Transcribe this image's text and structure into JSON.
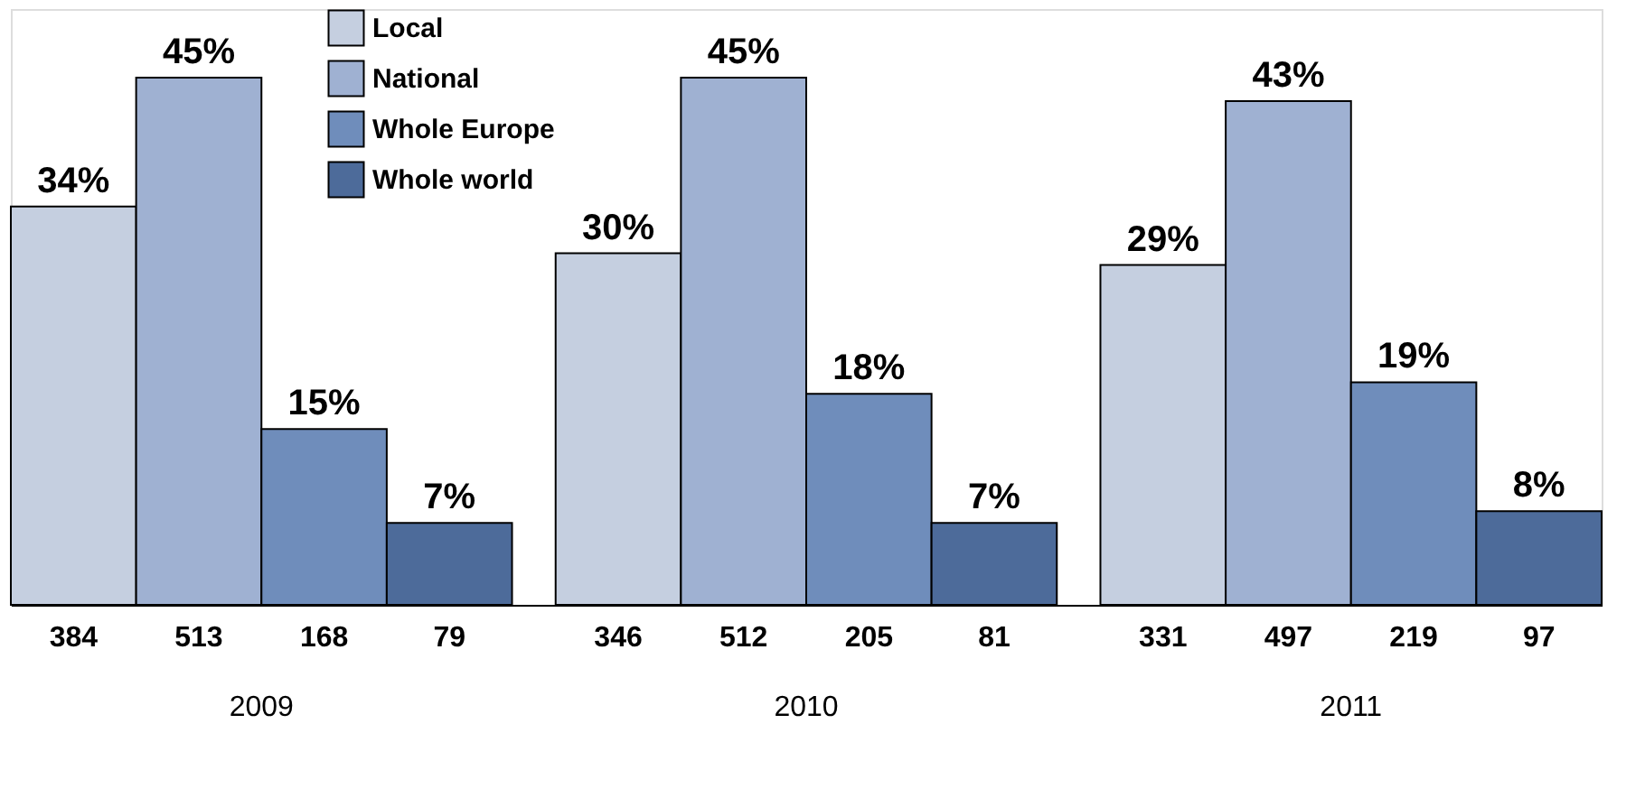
{
  "chart_data": {
    "type": "bar",
    "categories": [
      "2009",
      "2010",
      "2011"
    ],
    "series": [
      {
        "name": "Local",
        "color": "#c5cfe0",
        "values": [
          34,
          30,
          29
        ],
        "value_labels": [
          "34%",
          "30%",
          "29%"
        ]
      },
      {
        "name": "National",
        "color": "#9fb1d2",
        "values": [
          45,
          45,
          43
        ],
        "value_labels": [
          "45%",
          "45%",
          "43%"
        ]
      },
      {
        "name": "Whole Europe",
        "color": "#6f8dbb",
        "values": [
          15,
          18,
          19
        ],
        "value_labels": [
          "15%",
          "18%",
          "19%"
        ]
      },
      {
        "name": "Whole world",
        "color": "#4d6b9a",
        "values": [
          7,
          7,
          8
        ],
        "value_labels": [
          "7%",
          "7%",
          "8%"
        ]
      }
    ],
    "annotations": [
      "384",
      "513",
      "168",
      "79",
      "346",
      "512",
      "205",
      "81",
      "331",
      "497",
      "219",
      "97"
    ],
    "legend": "top left"
  }
}
